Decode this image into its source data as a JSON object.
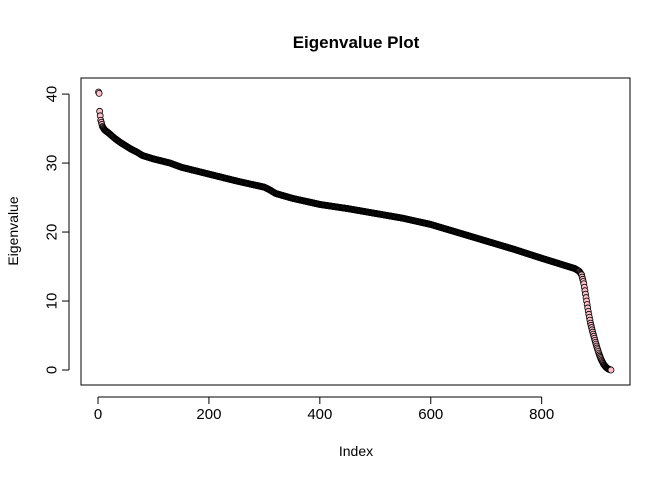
{
  "chart_data": {
    "type": "scatter",
    "title": "Eigenvalue Plot",
    "xlabel": "Index",
    "ylabel": "Eigenvalue",
    "xlim": [
      0,
      925
    ],
    "ylim": [
      0,
      40.3
    ],
    "xticks": [
      0,
      200,
      400,
      600,
      800
    ],
    "yticks": [
      0,
      10,
      20,
      30,
      40
    ],
    "grid": false,
    "legend": "none",
    "n_points": 925,
    "marker": {
      "shape": "circle",
      "fill": "#FFC0CB",
      "stroke": "#000000"
    },
    "series": [
      {
        "x": [
          1,
          2,
          3,
          5,
          8,
          12,
          20,
          30,
          40,
          50,
          60,
          70,
          80,
          100,
          130,
          150,
          200,
          250,
          300,
          310,
          320,
          350,
          400,
          450,
          500,
          550,
          600,
          650,
          700,
          750,
          800,
          840,
          860,
          868,
          872,
          876,
          880,
          884,
          888,
          892,
          896,
          900,
          904,
          908,
          912,
          916,
          920,
          925
        ],
        "y": [
          40.3,
          40.1,
          37.5,
          36.2,
          35.3,
          34.8,
          34.3,
          33.6,
          33.0,
          32.5,
          32.0,
          31.6,
          31.1,
          30.6,
          30.0,
          29.4,
          28.4,
          27.4,
          26.5,
          26.1,
          25.6,
          24.9,
          24.0,
          23.4,
          22.7,
          22.0,
          21.1,
          19.9,
          18.7,
          17.5,
          16.2,
          15.2,
          14.7,
          14.3,
          13.8,
          12.5,
          10.5,
          8.5,
          6.8,
          5.5,
          4.3,
          3.2,
          2.2,
          1.4,
          0.8,
          0.4,
          0.15,
          0.0
        ]
      }
    ]
  }
}
